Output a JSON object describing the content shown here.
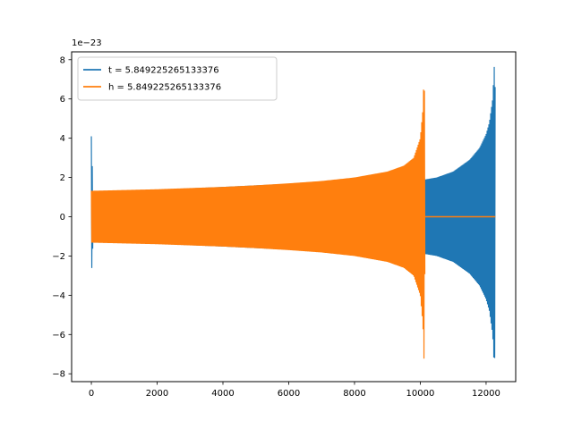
{
  "chart_data": {
    "type": "line",
    "title": "",
    "xlabel": "",
    "ylabel": "",
    "y_offset_label": "1e−23",
    "xlim": [
      -600,
      12900
    ],
    "ylim": [
      -8.4,
      8.4
    ],
    "x_ticks": [
      {
        "value": 0,
        "label": "0"
      },
      {
        "value": 2000,
        "label": "2000"
      },
      {
        "value": 4000,
        "label": "4000"
      },
      {
        "value": 6000,
        "label": "6000"
      },
      {
        "value": 8000,
        "label": "8000"
      },
      {
        "value": 10000,
        "label": "10000"
      },
      {
        "value": 12000,
        "label": "12000"
      }
    ],
    "y_ticks": [
      {
        "value": 8,
        "label": "8"
      },
      {
        "value": 6,
        "label": "6"
      },
      {
        "value": 4,
        "label": "4"
      },
      {
        "value": 2,
        "label": "2"
      },
      {
        "value": 0,
        "label": "0"
      },
      {
        "value": -2,
        "label": "−2"
      },
      {
        "value": -4,
        "label": "−4"
      },
      {
        "value": -6,
        "label": "−6"
      },
      {
        "value": -8,
        "label": "−8"
      }
    ],
    "grid": false,
    "legend_position": "upper-left",
    "series": [
      {
        "name": "t = 5.849225265133376",
        "color": "#1f77b4",
        "envelope_x": [
          0,
          50,
          500,
          1000,
          2000,
          3000,
          4000,
          5000,
          6000,
          7000,
          8000,
          9000,
          10000,
          10150,
          10500,
          11000,
          11500,
          11800,
          12000,
          12100,
          12200,
          12250,
          12280
        ],
        "envelope_upper": [
          4.1,
          1.3,
          1.3,
          1.33,
          1.38,
          1.45,
          1.52,
          1.6,
          1.68,
          1.78,
          1.9,
          2.05,
          2.2,
          1.9,
          2.0,
          2.3,
          2.9,
          3.5,
          4.2,
          4.8,
          6.0,
          7.7,
          6.4
        ],
        "envelope_lower": [
          -3.1,
          -1.3,
          -1.3,
          -1.33,
          -1.38,
          -1.45,
          -1.52,
          -1.6,
          -1.68,
          -1.78,
          -1.9,
          -2.05,
          -2.2,
          -1.9,
          -2.0,
          -2.3,
          -2.9,
          -3.5,
          -4.2,
          -4.8,
          -6.0,
          -7.7,
          -6.4
        ]
      },
      {
        "name": "h = 5.849225265133376",
        "color": "#ff7f0e",
        "envelope_x": [
          0,
          1000,
          2000,
          3000,
          4000,
          5000,
          6000,
          7000,
          8000,
          9000,
          9500,
          9800,
          10000,
          10080,
          10120,
          10150
        ],
        "envelope_upper": [
          1.32,
          1.36,
          1.4,
          1.46,
          1.52,
          1.6,
          1.7,
          1.82,
          2.0,
          2.3,
          2.6,
          3.0,
          4.0,
          5.5,
          7.7,
          0
        ],
        "envelope_lower": [
          -1.32,
          -1.36,
          -1.4,
          -1.46,
          -1.52,
          -1.6,
          -1.7,
          -1.82,
          -2.0,
          -2.3,
          -2.6,
          -3.0,
          -4.0,
          -5.5,
          -7.7,
          0
        ],
        "flat_x": [
          10150,
          12280
        ],
        "flat_y": [
          0,
          0
        ]
      }
    ]
  }
}
